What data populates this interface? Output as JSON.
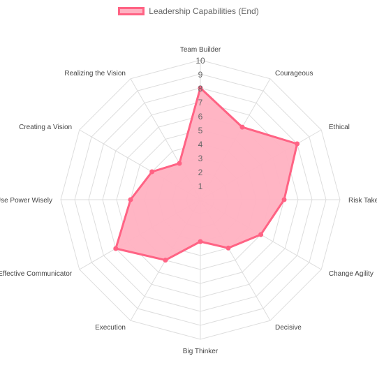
{
  "chart_data": {
    "type": "radar",
    "categories": [
      "Team Builder",
      "Courageous",
      "Ethical",
      "Risk Taker",
      "Change Agility",
      "Decisive",
      "Big Thinker",
      "Execution",
      "Effective Communicator",
      "Use Power Wisely",
      "Creating a Vision",
      "Realizing the Vision"
    ],
    "series": [
      {
        "name": "Leadership Capabilities (End)",
        "values": [
          8,
          6,
          8,
          6,
          5,
          4,
          3,
          5,
          7,
          5,
          4,
          3
        ]
      }
    ],
    "rlim": [
      0,
      10
    ],
    "ticks": [
      "1",
      "2",
      "3",
      "4",
      "5",
      "6",
      "7",
      "8",
      "9",
      "10"
    ],
    "legend_position": "top",
    "grid": true
  },
  "colors": {
    "fill": "#ffb1c1",
    "stroke": "#ff6384",
    "grid": "#dddddd",
    "tick": "#666666",
    "label": "#444444"
  }
}
